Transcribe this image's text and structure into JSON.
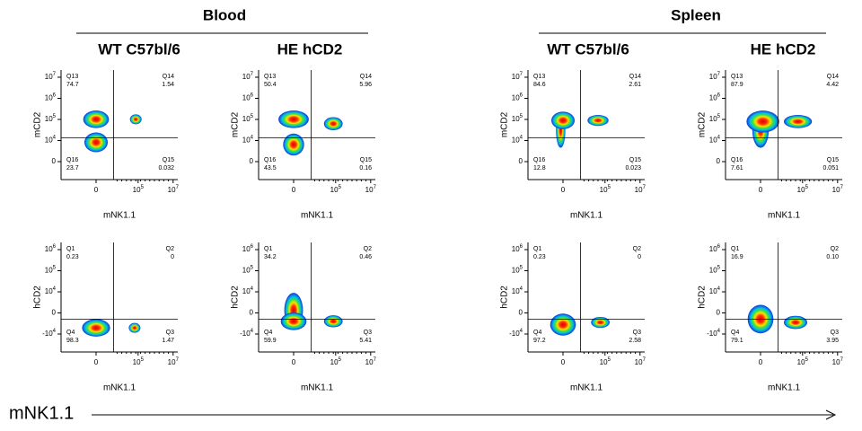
{
  "groups": [
    {
      "title": "Blood",
      "columns": [
        "WT C57bl/6",
        "HE hCD2"
      ]
    },
    {
      "title": "Spleen",
      "columns": [
        "WT C57bl/6",
        "HE hCD2"
      ]
    }
  ],
  "rows": [
    {
      "y_label": "mCD2",
      "x_label": "mNK1.1",
      "quadrants": [
        "Q13",
        "Q14",
        "Q16",
        "Q15"
      ],
      "yticks": [
        {
          "base": "10",
          "exp": "7"
        },
        {
          "base": "10",
          "exp": "6"
        },
        {
          "base": "10",
          "exp": "5"
        },
        {
          "base": "10",
          "exp": "4"
        },
        {
          "base": "0"
        }
      ],
      "panels": [
        [
          74.7,
          1.54,
          23.7,
          0.032
        ],
        [
          50.4,
          5.96,
          43.5,
          0.16
        ],
        [
          84.6,
          2.61,
          12.8,
          0.023
        ],
        [
          87.9,
          4.42,
          7.61,
          0.051
        ]
      ]
    },
    {
      "y_label": "hCD2",
      "x_label": "mNK1.1",
      "quadrants": [
        "Q1",
        "Q2",
        "Q4",
        "Q3"
      ],
      "yticks": [
        {
          "base": "10",
          "exp": "6"
        },
        {
          "base": "10",
          "exp": "5"
        },
        {
          "base": "10",
          "exp": "4"
        },
        {
          "base": "0"
        },
        {
          "base": "-10",
          "exp": "4"
        }
      ],
      "panels": [
        [
          0.23,
          0,
          98.3,
          1.47
        ],
        [
          34.2,
          0.46,
          59.9,
          5.41
        ],
        [
          0.23,
          0,
          97.2,
          2.58
        ],
        [
          16.9,
          {
            "value": 0.1,
            "label": "0.10"
          },
          79.1,
          3.95
        ]
      ]
    }
  ],
  "xticks": [
    {
      "base": "0"
    },
    {
      "base": "10",
      "exp": "5"
    },
    {
      "base": "10",
      "exp": "7"
    }
  ],
  "x_axis_label": "mNK1.1"
}
